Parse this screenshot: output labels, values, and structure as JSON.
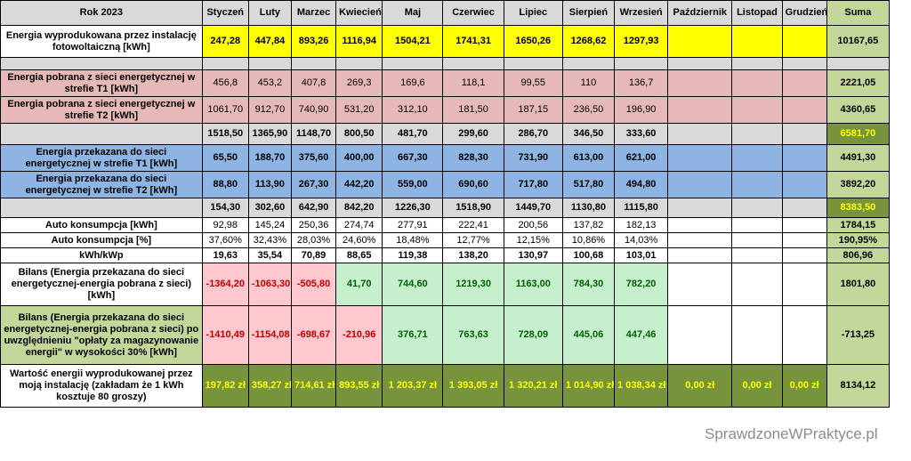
{
  "header": {
    "title": "Rok 2023",
    "months": [
      "Styczeń",
      "Luty",
      "Marzec",
      "Kwiecień",
      "Maj",
      "Czerwiec",
      "Lipiec",
      "Sierpień",
      "Wrzesień",
      "Październik",
      "Listopad",
      "Grudzień"
    ],
    "sum": "Suma"
  },
  "rows": {
    "production": {
      "label": "Energia wyprodukowana przez instalację fotowoltaiczną [kWh]",
      "values": [
        "247,28",
        "447,84",
        "893,26",
        "1116,94",
        "1504,21",
        "1741,31",
        "1650,26",
        "1268,62",
        "1297,93",
        "",
        "",
        ""
      ],
      "sum": "10167,65"
    },
    "taken_t1": {
      "label": "Energia pobrana z sieci energetycznej w strefie T1 [kWh]",
      "values": [
        "456,8",
        "453,2",
        "407,8",
        "269,3",
        "169,6",
        "118,1",
        "99,55",
        "110",
        "136,7",
        "",
        "",
        ""
      ],
      "sum": "2221,05"
    },
    "taken_t2": {
      "label": "Energia pobrana z sieci energetycznej w strefie T2 [kWh]",
      "values": [
        "1061,70",
        "912,70",
        "740,90",
        "531,20",
        "312,10",
        "181,50",
        "187,15",
        "236,50",
        "196,90",
        "",
        "",
        ""
      ],
      "sum": "4360,65"
    },
    "taken_total": {
      "values": [
        "1518,50",
        "1365,90",
        "1148,70",
        "800,50",
        "481,70",
        "299,60",
        "286,70",
        "346,50",
        "333,60",
        "",
        "",
        ""
      ],
      "sum": "6581,70"
    },
    "given_t1": {
      "label": "Energia przekazana do sieci energetycznej w strefie T1 [kWh]",
      "values": [
        "65,50",
        "188,70",
        "375,60",
        "400,00",
        "667,30",
        "828,30",
        "731,90",
        "613,00",
        "621,00",
        "",
        "",
        ""
      ],
      "sum": "4491,30"
    },
    "given_t2": {
      "label": "Energia przekazana do sieci energetycznej w strefie T2 [kWh]",
      "values": [
        "88,80",
        "113,90",
        "267,30",
        "442,20",
        "559,00",
        "690,60",
        "717,80",
        "517,80",
        "494,80",
        "",
        "",
        ""
      ],
      "sum": "3892,20"
    },
    "given_total": {
      "values": [
        "154,30",
        "302,60",
        "642,90",
        "842,20",
        "1226,30",
        "1518,90",
        "1449,70",
        "1130,80",
        "1115,80",
        "",
        "",
        ""
      ],
      "sum": "8383,50"
    },
    "auto_kwh": {
      "label": "Auto konsumpcja [kWh]",
      "values": [
        "92,98",
        "145,24",
        "250,36",
        "274,74",
        "277,91",
        "222,41",
        "200,56",
        "137,82",
        "182,13",
        "",
        "",
        ""
      ],
      "sum": "1784,15"
    },
    "auto_pct": {
      "label": "Auto konsumpcja [%]",
      "values": [
        "37,60%",
        "32,43%",
        "28,03%",
        "24,60%",
        "18,48%",
        "12,77%",
        "12,15%",
        "10,86%",
        "14,03%",
        "",
        "",
        ""
      ],
      "sum": "190,95%"
    },
    "kwh_kwp": {
      "label": "kWh/kWp",
      "values": [
        "19,63",
        "35,54",
        "70,89",
        "88,65",
        "119,38",
        "138,20",
        "130,97",
        "100,68",
        "103,01",
        "",
        "",
        ""
      ],
      "sum": "806,96"
    },
    "balance": {
      "label": "Bilans (Energia przekazana do sieci energetycznej-energia pobrana z sieci) [kWh]",
      "values": [
        "-1364,20",
        "-1063,30",
        "-505,80",
        "41,70",
        "744,60",
        "1219,30",
        "1163,00",
        "784,30",
        "782,20",
        "",
        "",
        ""
      ],
      "sum": "1801,80"
    },
    "balance_storage": {
      "label": "Bilans (Energia przekazana do sieci energetycznej-energia pobrana z sieci) po uwzględnieniu \"opłaty za magazynowanie energii\" w wysokości 30% [kWh]",
      "values": [
        "-1410,49",
        "-1154,08",
        "-698,67",
        "-210,96",
        "376,71",
        "763,63",
        "728,09",
        "445,06",
        "447,46",
        "",
        "",
        ""
      ],
      "sum": "-713,25"
    },
    "value": {
      "label": "Wartość energii wyprodukowanej przez moją instalację (zakładam że 1 kWh kosztuje 80 groszy)",
      "values": [
        "197,82 zł",
        "358,27 zł",
        "714,61 zł",
        "893,55 zł",
        "1 203,37 zł",
        "1 393,05 zł",
        "1 320,21 zł",
        "1 014,90 zł",
        "1 038,34 zł",
        "0,00 zł",
        "0,00 zł",
        "0,00 zł"
      ],
      "sum": "8134,12"
    }
  },
  "watermark": "SprawdzoneWPraktyce.pl",
  "colors": {
    "yellow": "#ffff00",
    "gray": "#d9d9d9",
    "pink": "#e6b8b7",
    "blue": "#8db4e2",
    "light_green": "#d8e4bc",
    "neg_red": "#ffc7ce",
    "pos_green": "#c6efce",
    "olive": "#77933c"
  }
}
